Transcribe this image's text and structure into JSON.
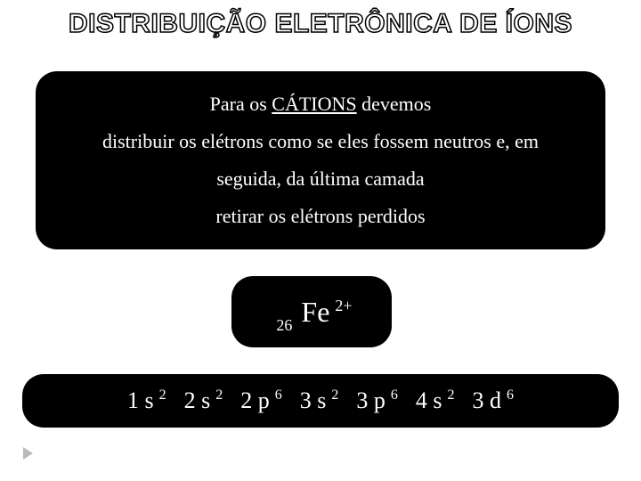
{
  "title": "DISTRIBUIÇÃO ELETRÔNICA DE ÍONS",
  "explain": {
    "line1_pre": "Para os ",
    "line1_u": "CÁTIONS",
    "line1_post": " devemos",
    "line2": "distribuir os elétrons como se eles fossem neutros e, em",
    "line3": "seguida, da última camada",
    "line4": "retirar os elétrons perdidos"
  },
  "ion": {
    "subscript": "26",
    "symbol": "Fe",
    "charge": "2+"
  },
  "config": {
    "orbitals": [
      {
        "shell": "1 s",
        "exp": "2"
      },
      {
        "shell": "2 s",
        "exp": "2"
      },
      {
        "shell": "2 p",
        "exp": "6"
      },
      {
        "shell": "3 s",
        "exp": "2"
      },
      {
        "shell": "3 p",
        "exp": "6"
      },
      {
        "shell": "4 s",
        "exp": "2"
      },
      {
        "shell": "3 d",
        "exp": "6"
      }
    ]
  },
  "style": {
    "bg": "#ffffff",
    "box_bg": "#000000",
    "text_color": "#ffffff",
    "title_stroke": "#000000",
    "title_fill": "#ffffff",
    "marker_color": "#b9b9b9",
    "title_fontsize": 30,
    "explain_fontsize": 22,
    "ion_symbol_fontsize": 32,
    "ion_sub_fontsize": 18,
    "orbital_fontsize": 26,
    "exp_fontsize": 16,
    "border_radius": 24
  }
}
